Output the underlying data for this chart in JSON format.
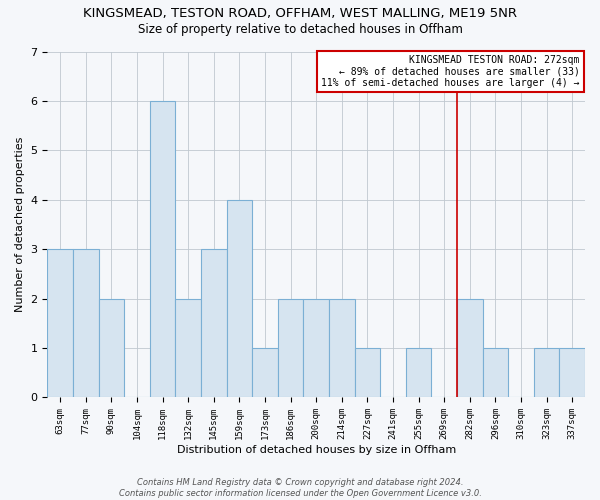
{
  "title": "KINGSMEAD, TESTON ROAD, OFFHAM, WEST MALLING, ME19 5NR",
  "subtitle": "Size of property relative to detached houses in Offham",
  "xlabel": "Distribution of detached houses by size in Offham",
  "ylabel": "Number of detached properties",
  "bar_labels": [
    "63sqm",
    "77sqm",
    "90sqm",
    "104sqm",
    "118sqm",
    "132sqm",
    "145sqm",
    "159sqm",
    "173sqm",
    "186sqm",
    "200sqm",
    "214sqm",
    "227sqm",
    "241sqm",
    "255sqm",
    "269sqm",
    "282sqm",
    "296sqm",
    "310sqm",
    "323sqm",
    "337sqm"
  ],
  "bar_values": [
    3,
    3,
    2,
    0,
    6,
    2,
    3,
    4,
    1,
    2,
    2,
    2,
    1,
    0,
    1,
    0,
    2,
    1,
    0,
    1,
    1
  ],
  "bar_color": "#d6e4f0",
  "bar_edgecolor": "#7bafd4",
  "legend_line1": "KINGSMEAD TESTON ROAD: 272sqm",
  "legend_line2": "← 89% of detached houses are smaller (33)",
  "legend_line3": "11% of semi-detached houses are larger (4) →",
  "legend_box_color": "white",
  "legend_box_edgecolor": "#cc0000",
  "vline_color": "#cc0000",
  "footer_line1": "Contains HM Land Registry data © Crown copyright and database right 2024.",
  "footer_line2": "Contains public sector information licensed under the Open Government Licence v3.0.",
  "ylim": [
    0,
    7
  ],
  "yticks": [
    0,
    1,
    2,
    3,
    4,
    5,
    6,
    7
  ],
  "background_color": "#f5f7fa",
  "plot_bg_color": "#f5f7fa",
  "title_fontsize": 9.5,
  "subtitle_fontsize": 8.5,
  "figsize": [
    6.0,
    5.0
  ],
  "dpi": 100
}
